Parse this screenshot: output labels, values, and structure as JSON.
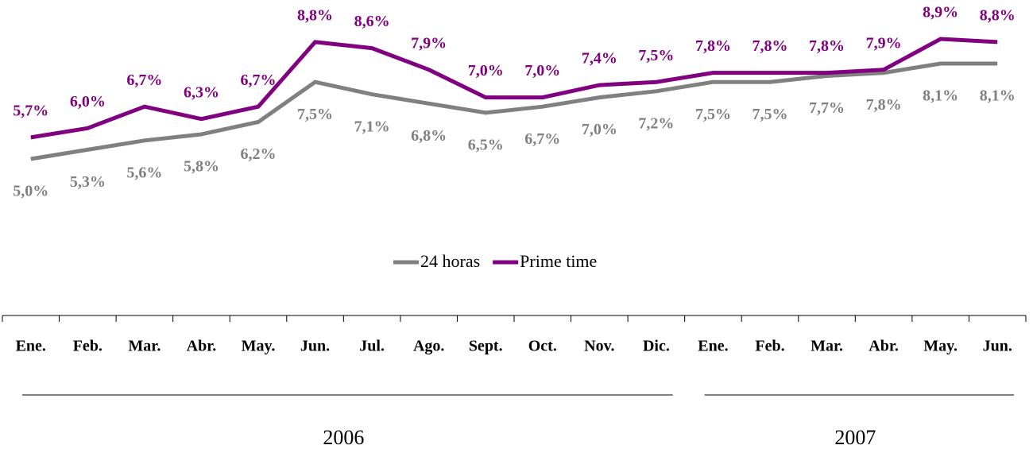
{
  "chart_data": {
    "type": "line",
    "categories": [
      "Ene.",
      "Feb.",
      "Mar.",
      "Abr.",
      "May.",
      "Jun.",
      "Jul.",
      "Ago.",
      "Sept.",
      "Oct.",
      "Nov.",
      "Dic.",
      "Ene.",
      "Feb.",
      "Mar.",
      "Abr.",
      "May.",
      "Jun."
    ],
    "year_groups": [
      {
        "name": "2006",
        "count": 12
      },
      {
        "name": "2007",
        "count": 6
      }
    ],
    "series": [
      {
        "name": "24 horas",
        "color": "#808080",
        "values": [
          5.0,
          5.3,
          5.6,
          5.8,
          6.2,
          7.5,
          7.1,
          6.8,
          6.5,
          6.7,
          7.0,
          7.2,
          7.5,
          7.5,
          7.7,
          7.8,
          8.1,
          8.1
        ],
        "value_labels": [
          "5,0%",
          "5,3%",
          "5,6%",
          "5,8%",
          "6,2%",
          "7,5%",
          "7,1%",
          "6,8%",
          "6,5%",
          "6,7%",
          "7,0%",
          "7,2%",
          "7,5%",
          "7,5%",
          "7,7%",
          "7,8%",
          "8,1%",
          "8,1%"
        ]
      },
      {
        "name": "Prime time",
        "color": "#800080",
        "values": [
          5.7,
          6.0,
          6.7,
          6.3,
          6.7,
          8.8,
          8.6,
          7.9,
          7.0,
          7.0,
          7.4,
          7.5,
          7.8,
          7.8,
          7.8,
          7.9,
          8.9,
          8.8
        ],
        "value_labels": [
          "5,7%",
          "6,0%",
          "6,7%",
          "6,3%",
          "6,7%",
          "8,8%",
          "8,6%",
          "7,9%",
          "7,0%",
          "7,0%",
          "7,4%",
          "7,5%",
          "7,8%",
          "7,8%",
          "7,8%",
          "7,9%",
          "8,9%",
          "8,8%"
        ]
      }
    ],
    "legend": "bottom"
  }
}
